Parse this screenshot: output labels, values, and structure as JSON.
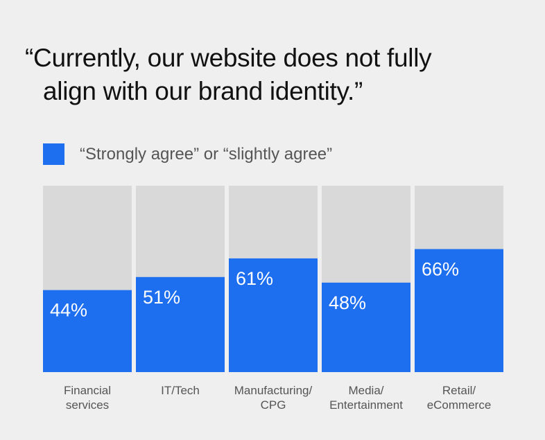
{
  "title": {
    "line1": "“Currently, our website does not fully",
    "line2": "align with our brand identity.”"
  },
  "colors": {
    "background": "#efefef",
    "track": "#d9d9d9",
    "bar": "#1e6ff0",
    "bar_label": "#ffffff",
    "category_label": "#555555"
  },
  "chart_data": {
    "type": "bar",
    "title": "“Currently, our website does not fully align with our brand identity.”",
    "ylim": [
      0,
      100
    ],
    "series": [
      {
        "name": "“Strongly agree” or “slightly agree”",
        "values": [
          44,
          51,
          61,
          48,
          66
        ]
      }
    ],
    "categories": [
      [
        "Financial",
        "services"
      ],
      [
        "IT/Tech"
      ],
      [
        "Manufacturing/",
        "CPG"
      ],
      [
        "Media/",
        "Entertainment"
      ],
      [
        "Retail/",
        "eCommerce"
      ]
    ],
    "value_labels": [
      "44%",
      "51%",
      "61%",
      "48%",
      "66%"
    ],
    "grid": false,
    "legend_position": "top-left"
  }
}
